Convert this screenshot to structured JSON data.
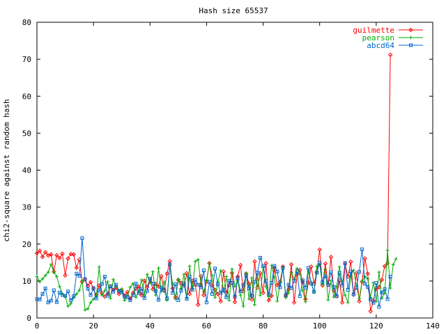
{
  "chart_data": {
    "type": "line",
    "title": "Hash size 65537",
    "xlabel": "",
    "ylabel": "chi2-square against random hash",
    "xlim": [
      0,
      140
    ],
    "ylim": [
      0,
      80
    ],
    "xticks": [
      0,
      20,
      40,
      60,
      80,
      100,
      120,
      140
    ],
    "yticks": [
      0,
      10,
      20,
      30,
      40,
      50,
      60,
      70,
      80
    ],
    "grid": false,
    "legend_position": "top-right",
    "series": [
      {
        "name": "guilmette",
        "color": "#ff0000",
        "marker": "diamond",
        "values": [
          17.5,
          18.2,
          16.5,
          17.8,
          16.9,
          17.2,
          12.5,
          17.0,
          16.2,
          17.4,
          11.5,
          16.1,
          17.3,
          17.2,
          13.6,
          15.8,
          9.8,
          10.5,
          8.7,
          9.7,
          7.9,
          6.2,
          8.8,
          6.7,
          5.8,
          6.5,
          8.6,
          7.6,
          8.2,
          6.5,
          7.4,
          6.1,
          7.0,
          5.2,
          6.8,
          7.9,
          8.5,
          6.2,
          10.1,
          8.4,
          10.6,
          7.8,
          9.2,
          8.5,
          11.3,
          7.4,
          12.0,
          15.4,
          8.0,
          5.6,
          10.3,
          9.5,
          8.8,
          12.1,
          6.5,
          10.0,
          9.0,
          3.6,
          11.3,
          6.2,
          9.9,
          14.8,
          8.8,
          7.6,
          6.5,
          4.5,
          12.6,
          6.8,
          8.9,
          12.2,
          4.3,
          11.2,
          14.3,
          7.2,
          12.0,
          9.2,
          5.0,
          15.3,
          8.2,
          12.1,
          6.8,
          14.8,
          4.8,
          6.0,
          13.6,
          8.9,
          9.8,
          13.9,
          5.9,
          7.7,
          14.5,
          4.2,
          11.8,
          13.0,
          9.8,
          5.1,
          9.6,
          13.9,
          9.3,
          12.4,
          18.5,
          8.8,
          14.7,
          8.9,
          16.5,
          7.4,
          5.9,
          10.2,
          4.2,
          14.6,
          11.2,
          15.2,
          6.3,
          12.1,
          4.5,
          9.8,
          16.1,
          12.0,
          1.8,
          4.7,
          8.0,
          8.3,
          10.3,
          14.0,
          14.8,
          71.2
        ]
      },
      {
        "name": "pearson",
        "color": "#00aa00",
        "marker": "plus",
        "values": [
          11.2,
          9.8,
          10.6,
          11.5,
          12.4,
          14.5,
          12.4,
          11.2,
          8.5,
          6.6,
          5.8,
          3.2,
          3.9,
          5.5,
          6.5,
          7.5,
          10.1,
          2.2,
          2.5,
          4.2,
          5.1,
          5.8,
          13.8,
          6.2,
          7.4,
          9.8,
          5.3,
          10.4,
          8.6,
          7.4,
          7.9,
          4.8,
          6.2,
          8.3,
          9.3,
          5.6,
          7.2,
          10.3,
          6.4,
          11.8,
          9.5,
          12.5,
          6.2,
          13.5,
          7.2,
          9.8,
          4.8,
          14.2,
          9.2,
          5.1,
          10.5,
          8.0,
          11.8,
          5.4,
          14.0,
          7.8,
          15.3,
          15.8,
          9.1,
          7.0,
          10.3,
          14.7,
          11.5,
          5.6,
          9.8,
          12.8,
          7.2,
          11.2,
          4.8,
          13.2,
          8.6,
          10.1,
          6.2,
          3.2,
          12.1,
          5.2,
          10.8,
          3.6,
          11.5,
          6.2,
          13.8,
          8.5,
          5.8,
          14.2,
          11.0,
          4.6,
          9.2,
          13.8,
          5.5,
          6.8,
          12.3,
          10.5,
          13.4,
          11.9,
          7.4,
          4.4,
          12.8,
          9.7,
          7.0,
          13.9,
          14.4,
          9.1,
          13.1,
          4.9,
          10.1,
          5.7,
          8.5,
          13.8,
          9.8,
          6.2,
          4.2,
          11.5,
          12.9,
          8.6,
          5.2,
          10.0,
          11.2,
          10.6,
          5.5,
          9.5,
          4.5,
          12.4,
          5.3,
          6.8,
          18.3,
          8.1,
          14.4,
          16.0
        ]
      },
      {
        "name": "abcd64",
        "color": "#0066cc",
        "marker": "square",
        "values": [
          5.1,
          5.0,
          6.5,
          8.0,
          4.2,
          4.7,
          7.5,
          4.3,
          6.9,
          6.2,
          6.0,
          7.2,
          4.8,
          5.9,
          12.0,
          11.4,
          21.6,
          10.5,
          7.9,
          6.2,
          8.1,
          5.3,
          7.5,
          9.2,
          11.2,
          6.0,
          8.6,
          7.1,
          9.0,
          7.3,
          6.9,
          5.8,
          5.6,
          4.8,
          6.2,
          9.3,
          6.7,
          7.9,
          5.4,
          7.3,
          10.6,
          9.3,
          7.3,
          4.9,
          8.3,
          7.5,
          5.3,
          14.5,
          6.8,
          9.2,
          4.8,
          7.4,
          9.4,
          5.2,
          11.2,
          7.6,
          10.3,
          9.0,
          8.3,
          12.9,
          4.2,
          9.8,
          6.5,
          13.4,
          9.1,
          6.8,
          7.7,
          5.6,
          10.1,
          9.5,
          5.7,
          10.8,
          7.2,
          8.9,
          11.4,
          8.0,
          6.0,
          9.8,
          12.3,
          16.3,
          14.0,
          10.0,
          6.4,
          9.5,
          14.1,
          12.6,
          8.3,
          13.5,
          6.2,
          9.0,
          8.1,
          10.0,
          12.6,
          5.9,
          10.2,
          8.2,
          13.6,
          9.3,
          7.1,
          12.3,
          15.0,
          9.7,
          11.3,
          9.0,
          12.4,
          8.4,
          5.9,
          12.2,
          8.8,
          14.9,
          7.6,
          12.6,
          6.4,
          8.2,
          12.5,
          18.6,
          9.3,
          8.4,
          5.0,
          4.1,
          9.5,
          3.0,
          6.9,
          7.8,
          5.1,
          11.2
        ]
      }
    ]
  }
}
